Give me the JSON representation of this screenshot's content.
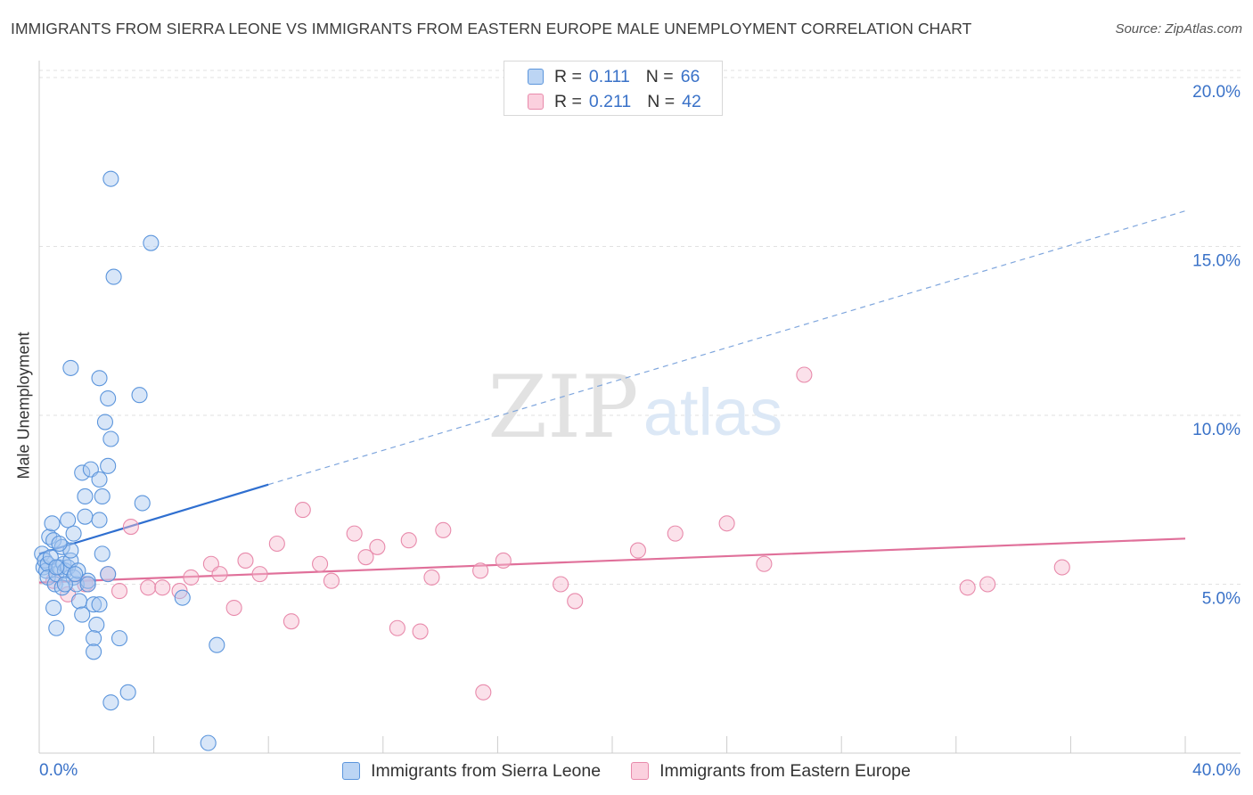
{
  "header": {
    "title": "IMMIGRANTS FROM SIERRA LEONE VS IMMIGRANTS FROM EASTERN EUROPE MALE UNEMPLOYMENT CORRELATION CHART",
    "source": "Source: ZipAtlas.com"
  },
  "legend": {
    "rows": [
      {
        "r_label": "R =",
        "r_value": "0.111",
        "n_label": "N =",
        "n_value": "66"
      },
      {
        "r_label": "R =",
        "r_value": "0.211",
        "n_label": "N =",
        "n_value": "42"
      }
    ]
  },
  "watermark": {
    "zip": "ZIP",
    "atlas": "atlas"
  },
  "colors": {
    "blue_fill": "#a9c8f0",
    "blue_stroke": "#5b95dc",
    "blue_line": "#2f6fd0",
    "pink_fill": "#f6bdd0",
    "pink_stroke": "#e88aab",
    "pink_line": "#e0709a",
    "tick_text": "#3a72c8",
    "grid": "#e2e2e2"
  },
  "chart_data": {
    "type": "scatter",
    "title": "IMMIGRANTS FROM SIERRA LEONE VS IMMIGRANTS FROM EASTERN EUROPE MALE UNEMPLOYMENT CORRELATION CHART",
    "xlabel": "",
    "ylabel": "Male Unemployment",
    "xlim": [
      0,
      40
    ],
    "ylim": [
      0,
      20.5
    ],
    "x_tick_labels": [
      "0.0%",
      "40.0%"
    ],
    "y_ticks": [
      5,
      10,
      15,
      20
    ],
    "y_tick_labels": [
      "5.0%",
      "10.0%",
      "15.0%",
      "20.0%"
    ],
    "grid": true,
    "series": [
      {
        "name": "Immigrants from Sierra Leone",
        "color": "blue",
        "r": 0.111,
        "n": 66,
        "trend": {
          "x0": 0,
          "y0": 5.9,
          "x1": 8.0,
          "y1": 7.95,
          "dash_to_x": 40,
          "dash_to_y": 16.05
        },
        "points": [
          [
            0.1,
            5.9
          ],
          [
            0.15,
            5.5
          ],
          [
            0.2,
            5.7
          ],
          [
            0.25,
            5.4
          ],
          [
            0.3,
            5.6
          ],
          [
            0.3,
            5.2
          ],
          [
            0.35,
            6.4
          ],
          [
            0.4,
            5.8
          ],
          [
            0.45,
            6.8
          ],
          [
            0.5,
            6.3
          ],
          [
            0.55,
            5.0
          ],
          [
            0.6,
            5.3
          ],
          [
            0.7,
            5.5
          ],
          [
            0.8,
            6.1
          ],
          [
            0.85,
            5.6
          ],
          [
            0.9,
            5.4
          ],
          [
            1.0,
            5.5
          ],
          [
            1.1,
            5.7
          ],
          [
            1.2,
            5.2
          ],
          [
            1.3,
            5.0
          ],
          [
            0.5,
            4.3
          ],
          [
            0.6,
            3.7
          ],
          [
            0.8,
            4.9
          ],
          [
            1.0,
            6.9
          ],
          [
            1.1,
            6.0
          ],
          [
            1.2,
            6.5
          ],
          [
            1.35,
            5.4
          ],
          [
            1.6,
            7.0
          ],
          [
            1.5,
            8.3
          ],
          [
            1.8,
            8.4
          ],
          [
            1.6,
            7.6
          ],
          [
            2.1,
            8.1
          ],
          [
            2.3,
            9.8
          ],
          [
            2.5,
            9.3
          ],
          [
            2.4,
            8.5
          ],
          [
            2.2,
            7.6
          ],
          [
            1.4,
            4.5
          ],
          [
            1.5,
            4.1
          ],
          [
            1.7,
            5.1
          ],
          [
            1.9,
            4.4
          ],
          [
            2.1,
            4.4
          ],
          [
            2.0,
            3.8
          ],
          [
            1.1,
            11.4
          ],
          [
            2.1,
            11.1
          ],
          [
            2.4,
            10.5
          ],
          [
            3.5,
            10.6
          ],
          [
            2.5,
            17.0
          ],
          [
            2.6,
            14.1
          ],
          [
            3.9,
            15.1
          ],
          [
            2.1,
            6.9
          ],
          [
            1.7,
            5.0
          ],
          [
            2.2,
            5.9
          ],
          [
            2.4,
            5.3
          ],
          [
            2.8,
            3.4
          ],
          [
            1.9,
            3.4
          ],
          [
            1.9,
            3.0
          ],
          [
            3.1,
            1.8
          ],
          [
            2.5,
            1.5
          ],
          [
            3.6,
            7.4
          ],
          [
            5.0,
            4.6
          ],
          [
            6.2,
            3.2
          ],
          [
            5.9,
            0.3
          ],
          [
            0.6,
            5.5
          ],
          [
            0.9,
            5.0
          ],
          [
            1.25,
            5.3
          ],
          [
            0.7,
            6.2
          ]
        ]
      },
      {
        "name": "Immigrants from Eastern Europe",
        "color": "pink",
        "r": 0.211,
        "n": 42,
        "trend": {
          "x0": 0,
          "y0": 5.05,
          "x1": 40,
          "y1": 6.35
        },
        "points": [
          [
            0.5,
            5.1
          ],
          [
            1.0,
            4.7
          ],
          [
            1.6,
            5.0
          ],
          [
            2.4,
            5.3
          ],
          [
            2.8,
            4.8
          ],
          [
            3.2,
            6.7
          ],
          [
            3.8,
            4.9
          ],
          [
            4.3,
            4.9
          ],
          [
            4.9,
            4.8
          ],
          [
            5.3,
            5.2
          ],
          [
            6.0,
            5.6
          ],
          [
            6.3,
            5.3
          ],
          [
            6.8,
            4.3
          ],
          [
            7.2,
            5.7
          ],
          [
            7.7,
            5.3
          ],
          [
            8.3,
            6.2
          ],
          [
            8.8,
            3.9
          ],
          [
            9.2,
            7.2
          ],
          [
            9.8,
            5.6
          ],
          [
            10.2,
            5.1
          ],
          [
            11.0,
            6.5
          ],
          [
            11.4,
            5.8
          ],
          [
            11.8,
            6.1
          ],
          [
            12.5,
            3.7
          ],
          [
            12.9,
            6.3
          ],
          [
            13.3,
            3.6
          ],
          [
            13.7,
            5.2
          ],
          [
            14.1,
            6.6
          ],
          [
            15.4,
            5.4
          ],
          [
            15.5,
            1.8
          ],
          [
            16.2,
            5.7
          ],
          [
            18.2,
            5.0
          ],
          [
            18.7,
            4.5
          ],
          [
            20.9,
            6.0
          ],
          [
            22.2,
            6.5
          ],
          [
            24.0,
            6.8
          ],
          [
            25.3,
            5.6
          ],
          [
            26.7,
            11.2
          ],
          [
            32.4,
            4.9
          ],
          [
            33.1,
            5.0
          ],
          [
            35.7,
            5.5
          ],
          [
            1.7,
            5.0
          ]
        ]
      }
    ]
  }
}
